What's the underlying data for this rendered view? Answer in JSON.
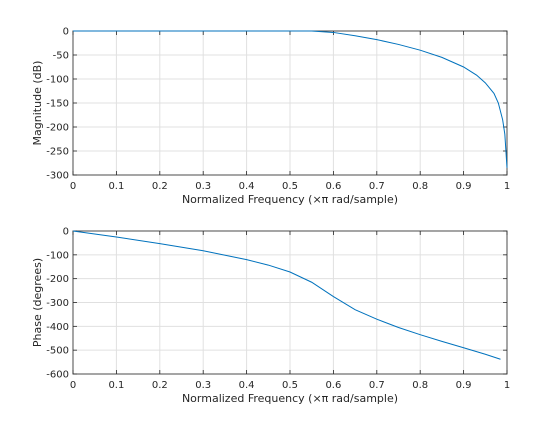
{
  "chart_data": [
    {
      "type": "line",
      "xlabel": "Normalized Frequency  (×π rad/sample)",
      "ylabel": "Magnitude (dB)",
      "xlim": [
        0,
        1
      ],
      "ylim": [
        -300,
        0
      ],
      "grid": true,
      "xticks": [
        0,
        0.1,
        0.2,
        0.3,
        0.4,
        0.5,
        0.6,
        0.7,
        0.8,
        0.9,
        1
      ],
      "xtick_labels": [
        "0",
        "0.1",
        "0.2",
        "0.3",
        "0.4",
        "0.5",
        "0.6",
        "0.7",
        "0.8",
        "0.9",
        "1"
      ],
      "yticks": [
        0,
        -50,
        -100,
        -150,
        -200,
        -250,
        -300
      ],
      "ytick_labels": [
        "0",
        "-50",
        "-100",
        "-150",
        "-200",
        "-250",
        "-300"
      ],
      "series": [
        {
          "x": [
            0,
            0.1,
            0.2,
            0.3,
            0.4,
            0.5,
            0.55,
            0.6,
            0.65,
            0.7,
            0.75,
            0.8,
            0.85,
            0.9,
            0.93,
            0.95,
            0.97,
            0.98,
            0.99,
            0.995,
            1.0
          ],
          "y": [
            0,
            0,
            0,
            0,
            0,
            0,
            0,
            -3,
            -10,
            -18,
            -28,
            -40,
            -55,
            -75,
            -92,
            -108,
            -130,
            -150,
            -185,
            -215,
            -285
          ]
        }
      ]
    },
    {
      "type": "line",
      "xlabel": "Normalized Frequency  (×π rad/sample)",
      "ylabel": "Phase (degrees)",
      "xlim": [
        0,
        1
      ],
      "ylim": [
        -600,
        0
      ],
      "grid": true,
      "xticks": [
        0,
        0.1,
        0.2,
        0.3,
        0.4,
        0.5,
        0.6,
        0.7,
        0.8,
        0.9,
        1
      ],
      "xtick_labels": [
        "0",
        "0.1",
        "0.2",
        "0.3",
        "0.4",
        "0.5",
        "0.6",
        "0.7",
        "0.8",
        "0.9",
        "1"
      ],
      "yticks": [
        0,
        -100,
        -200,
        -300,
        -400,
        -500,
        -600
      ],
      "ytick_labels": [
        "0",
        "-100",
        "-200",
        "-300",
        "-400",
        "-500",
        "-600"
      ],
      "series": [
        {
          "x": [
            0,
            0.1,
            0.2,
            0.3,
            0.4,
            0.45,
            0.5,
            0.55,
            0.6,
            0.65,
            0.7,
            0.75,
            0.8,
            0.85,
            0.9,
            0.95,
            0.985
          ],
          "y": [
            0,
            -25,
            -53,
            -83,
            -120,
            -143,
            -172,
            -215,
            -275,
            -330,
            -370,
            -405,
            -435,
            -463,
            -490,
            -517,
            -538
          ]
        }
      ]
    }
  ]
}
